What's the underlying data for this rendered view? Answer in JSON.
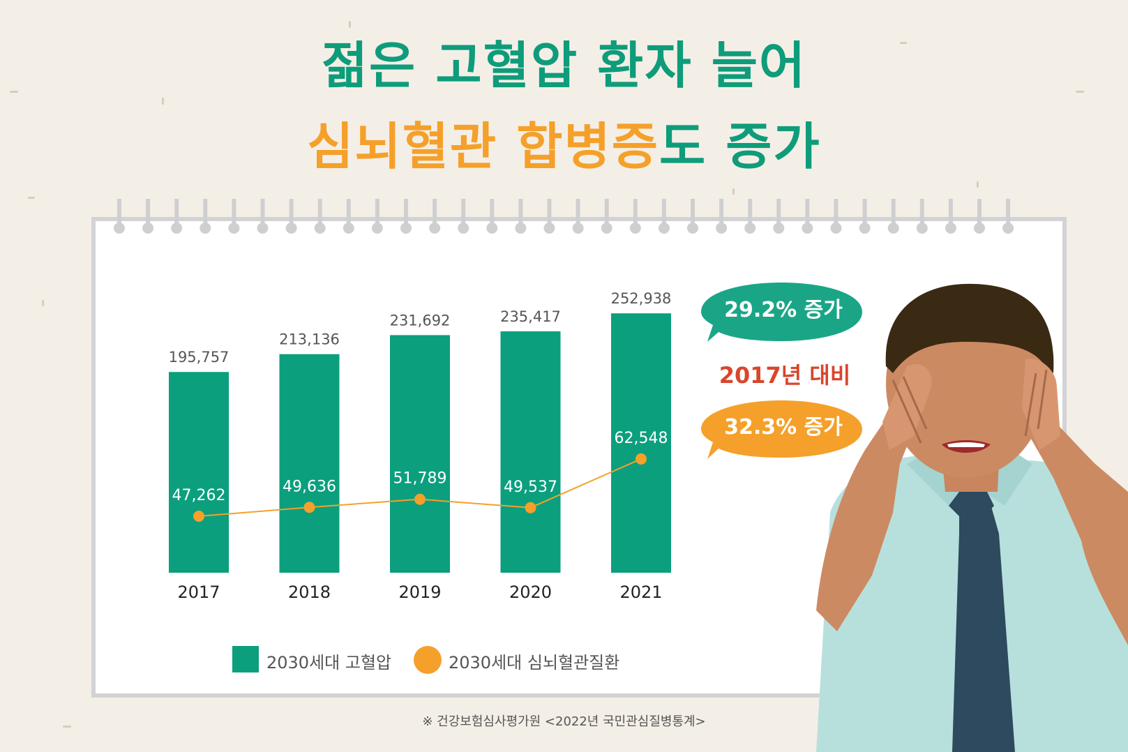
{
  "title": {
    "line1": "젊은 고혈압 환자 늘어",
    "line2_highlight": "심뇌혈관 합병증",
    "line2_rest": "도 증가"
  },
  "colors": {
    "green": "#0b9f7e",
    "orange": "#f5a02a",
    "red": "#d9462b",
    "background": "#f4efe6"
  },
  "chart_data": {
    "type": "bar",
    "categories": [
      "2017",
      "2018",
      "2019",
      "2020",
      "2021"
    ],
    "series": [
      {
        "name": "2030세대 고혈압",
        "type": "bar",
        "values": [
          195757,
          213136,
          231692,
          235417,
          252938
        ],
        "labels": [
          "195,757",
          "213,136",
          "231,692",
          "235,417",
          "252,938"
        ]
      },
      {
        "name": "2030세대 심뇌혈관질환",
        "type": "line",
        "values": [
          47262,
          49636,
          51789,
          49537,
          62548
        ],
        "labels": [
          "47,262",
          "49,636",
          "51,789",
          "49,537",
          "62,548"
        ]
      }
    ],
    "legend_position": "bottom"
  },
  "callouts": {
    "green_bubble": "29.2% 증가",
    "compare": "2017년 대비",
    "orange_bubble": "32.3% 증가"
  },
  "source": "※ 건강보험심사평가원 <2022년 국민관심질병통계>",
  "icons": {
    "illustration": "stressed-man-covering-eyes-illustration"
  }
}
